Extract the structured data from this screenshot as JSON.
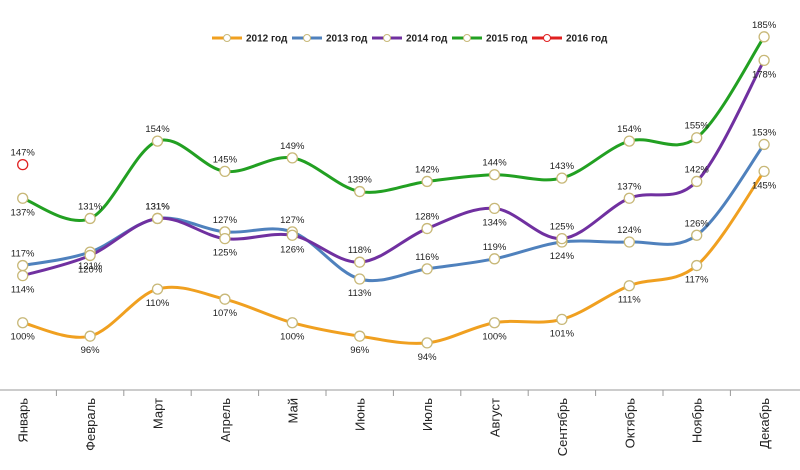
{
  "chart_data": {
    "type": "line",
    "categories": [
      "Январь",
      "Февраль",
      "Март",
      "Апрель",
      "Май",
      "Июнь",
      "Июль",
      "Август",
      "Сентябрь",
      "Октябрь",
      "Ноябрь",
      "Декабрь"
    ],
    "series": [
      {
        "name": "2012 год",
        "color": "#f0a020",
        "values": [
          100,
          96,
          110,
          107,
          100,
          96,
          94,
          100,
          101,
          111,
          117,
          145
        ],
        "value_labels": [
          "100%",
          "96%",
          "110%",
          "107%",
          "100%",
          "96%",
          "94%",
          "100%",
          "101%",
          "111%",
          "117%",
          "145%"
        ]
      },
      {
        "name": "2013 год",
        "color": "#4f81bd",
        "values": [
          117,
          121,
          131,
          127,
          127,
          113,
          116,
          119,
          124,
          124,
          126,
          153
        ],
        "value_labels": [
          "117%",
          "121%",
          "131%",
          "127%",
          "127%",
          "113%",
          "116%",
          "119%",
          "124%",
          "124%",
          "126%",
          "153%"
        ]
      },
      {
        "name": "2014 год",
        "color": "#7030a0",
        "values": [
          114,
          120,
          131,
          125,
          126,
          118,
          128,
          134,
          125,
          137,
          142,
          178
        ],
        "value_labels": [
          "114%",
          "120%",
          "131%",
          "125%",
          "126%",
          "118%",
          "128%",
          "134%",
          "125%",
          "137%",
          "142%",
          "178%"
        ]
      },
      {
        "name": "2015 год",
        "color": "#22a022",
        "values": [
          137,
          131,
          154,
          145,
          149,
          139,
          142,
          144,
          143,
          154,
          155,
          185
        ],
        "value_labels": [
          "137%",
          "131%",
          "154%",
          "145%",
          "149%",
          "139%",
          "142%",
          "144%",
          "143%",
          "154%",
          "155%",
          "185%"
        ]
      },
      {
        "name": "2016 год",
        "color": "#e02020",
        "values": [
          147,
          null,
          null,
          null,
          null,
          null,
          null,
          null,
          null,
          null,
          null,
          null
        ],
        "value_labels": [
          "147%",
          null,
          null,
          null,
          null,
          null,
          null,
          null,
          null,
          null,
          null,
          null
        ]
      }
    ],
    "ylim": [
      80,
      190
    ],
    "legend": "top",
    "smooth": true,
    "marker_color": "#c8b878"
  }
}
